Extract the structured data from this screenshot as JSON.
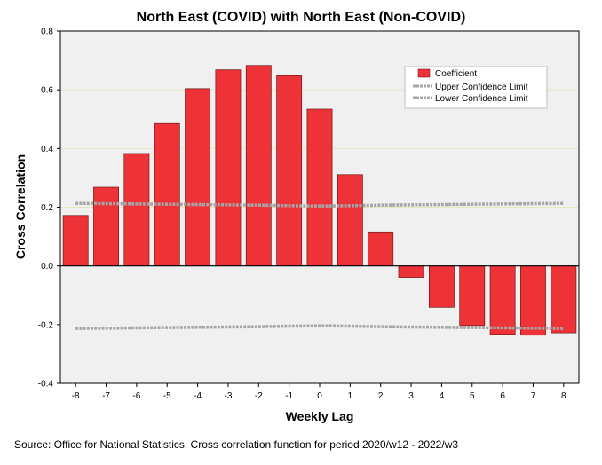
{
  "chart_data": {
    "type": "bar",
    "title": "North East (COVID) with North East (Non-COVID)",
    "xlabel": "Weekly Lag",
    "ylabel": "Cross Correlation",
    "categories": [
      "-8",
      "-7",
      "-6",
      "-5",
      "-4",
      "-3",
      "-2",
      "-1",
      "0",
      "1",
      "2",
      "3",
      "4",
      "5",
      "6",
      "7",
      "8"
    ],
    "series": [
      {
        "name": "Coefficient",
        "color": "#ee3338",
        "values": [
          0.172,
          0.268,
          0.383,
          0.485,
          0.604,
          0.668,
          0.683,
          0.648,
          0.534,
          0.311,
          0.116,
          -0.039,
          -0.141,
          -0.203,
          -0.233,
          -0.236,
          -0.228
        ]
      },
      {
        "name": "Upper Confidence Limit",
        "color": "#a6a6a6",
        "values": [
          0.213,
          0.212,
          0.211,
          0.21,
          0.209,
          0.208,
          0.207,
          0.205,
          0.204,
          0.205,
          0.207,
          0.208,
          0.209,
          0.21,
          0.211,
          0.212,
          0.213
        ]
      },
      {
        "name": "Lower Confidence Limit",
        "color": "#a6a6a6",
        "values": [
          -0.213,
          -0.212,
          -0.211,
          -0.21,
          -0.209,
          -0.208,
          -0.207,
          -0.205,
          -0.204,
          -0.205,
          -0.207,
          -0.208,
          -0.209,
          -0.21,
          -0.211,
          -0.212,
          -0.213
        ]
      }
    ],
    "ylim": [
      -0.4,
      0.8
    ],
    "yticks": [
      "-0.4",
      "-0.2",
      "0.0",
      "0.2",
      "0.4",
      "0.6",
      "0.8"
    ],
    "gridlines": [
      0.2,
      0.4,
      0.6
    ],
    "legend_position": "top-right",
    "background_color": "#f0f0f0",
    "gridline_color": "#e3e8c0"
  },
  "source_note": "Source: Office for National Statistics. Cross correlation function for period 2020/w12 - 2022/w3"
}
